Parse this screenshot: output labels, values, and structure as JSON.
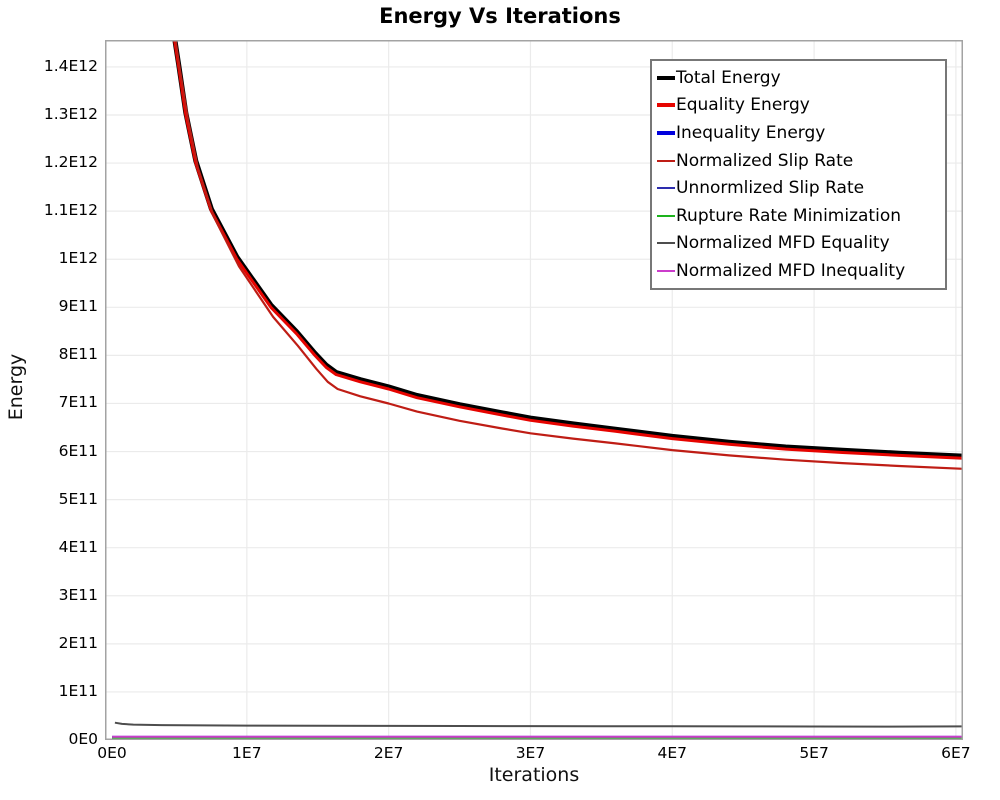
{
  "chart_data": {
    "type": "line",
    "title": "Energy Vs Iterations",
    "xlabel": "Iterations",
    "ylabel": "Energy",
    "xlim": [
      0,
      60500000.0
    ],
    "ylim": [
      0,
      1456000000000.0
    ],
    "grid": true,
    "legend_position": "upper right",
    "background_color": "#ffffff",
    "gridline_color": "#ebebeb",
    "axis_border_color": "#a3a3a3",
    "x_ticks": [
      {
        "value": 0,
        "label": "0E0"
      },
      {
        "value": 10000000.0,
        "label": "1E7"
      },
      {
        "value": 20000000.0,
        "label": "2E7"
      },
      {
        "value": 30000000.0,
        "label": "3E7"
      },
      {
        "value": 40000000.0,
        "label": "4E7"
      },
      {
        "value": 50000000.0,
        "label": "5E7"
      },
      {
        "value": 60000000.0,
        "label": "6E7"
      }
    ],
    "y_ticks": [
      {
        "value": 0,
        "label": "0E0"
      },
      {
        "value": 100000000000.0,
        "label": "1E11"
      },
      {
        "value": 200000000000.0,
        "label": "2E11"
      },
      {
        "value": 300000000000.0,
        "label": "3E11"
      },
      {
        "value": 400000000000.0,
        "label": "4E11"
      },
      {
        "value": 500000000000.0,
        "label": "5E11"
      },
      {
        "value": 600000000000.0,
        "label": "6E11"
      },
      {
        "value": 700000000000.0,
        "label": "7E11"
      },
      {
        "value": 800000000000.0,
        "label": "8E11"
      },
      {
        "value": 900000000000.0,
        "label": "9E11"
      },
      {
        "value": 1000000000000.0,
        "label": "1E12"
      },
      {
        "value": 1100000000000.0,
        "label": "1.1E12"
      },
      {
        "value": 1200000000000.0,
        "label": "1.2E12"
      },
      {
        "value": 1300000000000.0,
        "label": "1.3E12"
      },
      {
        "value": 1400000000000.0,
        "label": "1.4E12"
      }
    ],
    "series": [
      {
        "name": "Total Energy",
        "color": "#000000",
        "width": 5,
        "legend_thickness": 4,
        "points": [
          [
            4800000.0,
            1559500000000.0
          ],
          [
            4900000.0,
            1460500000000.0
          ],
          [
            5200000.0,
            1404500000000.0
          ],
          [
            5700000.0,
            1304500000000.0
          ],
          [
            6400000.0,
            1204500000000.0
          ],
          [
            7500000.0,
            1104500000000.0
          ],
          [
            9300000.0,
            1004500000000.0
          ],
          [
            11700000.0,
            904500000000.0
          ],
          [
            13500000.0,
            849500000000.0
          ],
          [
            14800000.0,
            804500000000.0
          ],
          [
            15600000.0,
            779500000000.0
          ],
          [
            16300000.0,
            764500000000.0
          ],
          [
            18000000.0,
            749500000000.0
          ],
          [
            20000000.0,
            734500000000.0
          ],
          [
            22000000.0,
            716500000000.0
          ],
          [
            25000000.0,
            697500000000.0
          ],
          [
            28000000.0,
            680500000000.0
          ],
          [
            30000000.0,
            669500000000.0
          ],
          [
            33000000.0,
            657500000000.0
          ],
          [
            36000000.0,
            646500000000.0
          ],
          [
            40000000.0,
            631500000000.0
          ],
          [
            44000000.0,
            619500000000.0
          ],
          [
            48000000.0,
            609500000000.0
          ],
          [
            52000000.0,
            602500000000.0
          ],
          [
            56000000.0,
            596500000000.0
          ],
          [
            60500000.0,
            590500000000.0
          ]
        ]
      },
      {
        "name": "Equality Energy",
        "color": "#e60400",
        "width": 3,
        "legend_thickness": 4,
        "points": [
          [
            4800000.0,
            1555000000000.0
          ],
          [
            4900000.0,
            1456000000000.0
          ],
          [
            5200000.0,
            1400000000000.0
          ],
          [
            5700000.0,
            1300000000000.0
          ],
          [
            6400000.0,
            1200000000000.0
          ],
          [
            7500000.0,
            1100000000000.0
          ],
          [
            9300000.0,
            1000000000000.0
          ],
          [
            11700000.0,
            900000000000.0
          ],
          [
            13500000.0,
            845000000000.0
          ],
          [
            14800000.0,
            800000000000.0
          ],
          [
            15600000.0,
            775000000000.0
          ],
          [
            16300000.0,
            760000000000.0
          ],
          [
            18000000.0,
            745000000000.0
          ],
          [
            20000000.0,
            730000000000.0
          ],
          [
            22000000.0,
            712000000000.0
          ],
          [
            25000000.0,
            693000000000.0
          ],
          [
            28000000.0,
            676000000000.0
          ],
          [
            30000000.0,
            665000000000.0
          ],
          [
            33000000.0,
            653000000000.0
          ],
          [
            36000000.0,
            642000000000.0
          ],
          [
            40000000.0,
            627000000000.0
          ],
          [
            44000000.0,
            615000000000.0
          ],
          [
            48000000.0,
            605000000000.0
          ],
          [
            52000000.0,
            598000000000.0
          ],
          [
            56000000.0,
            592000000000.0
          ],
          [
            60500000.0,
            586000000000.0
          ]
        ]
      },
      {
        "name": "Inequality Energy",
        "color": "#0000dd",
        "width": 3.5,
        "legend_thickness": 4,
        "points": [
          [
            500000.0,
            5000000000.0
          ],
          [
            60500000.0,
            5000000000.0
          ]
        ]
      },
      {
        "name": "Normalized Slip Rate",
        "color": "#bf1d15",
        "width": 2.2,
        "legend_thickness": 2,
        "points": [
          [
            4800000.0,
            1550000000000.0
          ],
          [
            5000000.0,
            1450000000000.0
          ],
          [
            5300000.0,
            1390000000000.0
          ],
          [
            5850000.0,
            1290000000000.0
          ],
          [
            6550000.0,
            1190000000000.0
          ],
          [
            7650000.0,
            1090000000000.0
          ],
          [
            9450000.0,
            985000000000.0
          ],
          [
            11850000.0,
            880000000000.0
          ],
          [
            13600000.0,
            820000000000.0
          ],
          [
            14900000.0,
            772000000000.0
          ],
          [
            15700000.0,
            745000000000.0
          ],
          [
            16400000.0,
            730000000000.0
          ],
          [
            18000000.0,
            715000000000.0
          ],
          [
            20000000.0,
            700000000000.0
          ],
          [
            22000000.0,
            683000000000.0
          ],
          [
            25000000.0,
            664000000000.0
          ],
          [
            28000000.0,
            648000000000.0
          ],
          [
            30000000.0,
            638000000000.0
          ],
          [
            33000000.0,
            627000000000.0
          ],
          [
            36000000.0,
            617000000000.0
          ],
          [
            40000000.0,
            603000000000.0
          ],
          [
            44000000.0,
            592000000000.0
          ],
          [
            48000000.0,
            583000000000.0
          ],
          [
            52000000.0,
            576000000000.0
          ],
          [
            56000000.0,
            570000000000.0
          ],
          [
            60500000.0,
            564000000000.0
          ]
        ]
      },
      {
        "name": "Unnormlized Slip Rate",
        "color": "#2d2dae",
        "width": 1.8,
        "legend_thickness": 2,
        "points": [
          [
            500000.0,
            4500000000.0
          ],
          [
            60500000.0,
            4500000000.0
          ]
        ]
      },
      {
        "name": "Rupture Rate Minimization",
        "color": "#1db31d",
        "width": 1.8,
        "legend_thickness": 2,
        "points": [
          [
            500000.0,
            4000000000.0
          ],
          [
            60500000.0,
            4000000000.0
          ]
        ]
      },
      {
        "name": "Normalized MFD Equality",
        "color": "#4d4d4d",
        "width": 2,
        "legend_thickness": 2,
        "points": [
          [
            700000.0,
            36000000000.0
          ],
          [
            1200000.0,
            33500000000.0
          ],
          [
            2000000.0,
            32000000000.0
          ],
          [
            4000000.0,
            31000000000.0
          ],
          [
            7000000.0,
            30300000000.0
          ],
          [
            10000000.0,
            30000000000.0
          ],
          [
            15000000.0,
            29700000000.0
          ],
          [
            20000000.0,
            29400000000.0
          ],
          [
            25000000.0,
            29100000000.0
          ],
          [
            30000000.0,
            28900000000.0
          ],
          [
            35000000.0,
            28700000000.0
          ],
          [
            40000000.0,
            28500000000.0
          ],
          [
            45000000.0,
            28200000000.0
          ],
          [
            50000000.0,
            28000000000.0
          ],
          [
            55000000.0,
            27800000000.0
          ],
          [
            60500000.0,
            28200000000.0
          ]
        ]
      },
      {
        "name": "Normalized MFD Inequality",
        "color": "#cb3ccb",
        "width": 2,
        "legend_thickness": 2,
        "points": [
          [
            500000.0,
            6800000000.0
          ],
          [
            60500000.0,
            6800000000.0
          ]
        ]
      }
    ]
  }
}
